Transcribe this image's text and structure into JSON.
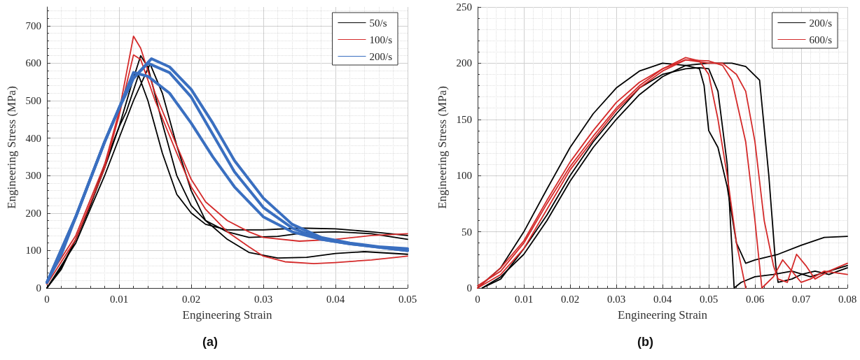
{
  "chart_data": [
    {
      "type": "line",
      "xlabel": "Engineering Strain",
      "ylabel": "Engineering Stress (MPa)",
      "annotations": [
        "(a)"
      ],
      "xlim": [
        0,
        0.05
      ],
      "ylim": [
        0,
        750
      ],
      "xticks": [
        0,
        0.01,
        0.02,
        0.03,
        0.04,
        0.05
      ],
      "yticks": [
        0,
        100,
        200,
        300,
        400,
        500,
        600,
        700
      ],
      "grid": true,
      "legend": "top right",
      "marker": "none",
      "line_style": "solid",
      "series": [
        {
          "name": "50/s",
          "color": "#000000",
          "x": [
            0,
            0.002,
            0.004,
            0.006,
            0.008,
            0.01,
            0.011,
            0.0127,
            0.014,
            0.016,
            0.018,
            0.02,
            0.022,
            0.025,
            0.03,
            0.035,
            0.04,
            0.045,
            0.05
          ],
          "values": [
            0,
            55,
            130,
            220,
            330,
            430,
            470,
            568,
            500,
            360,
            250,
            200,
            170,
            155,
            155,
            160,
            158,
            150,
            140
          ]
        },
        {
          "color": "#000000",
          "x": [
            0,
            0.002,
            0.004,
            0.006,
            0.008,
            0.01,
            0.012,
            0.013,
            0.014,
            0.016,
            0.018,
            0.02,
            0.022,
            0.025,
            0.028,
            0.032,
            0.036,
            0.04,
            0.045,
            0.05
          ],
          "values": [
            0,
            50,
            130,
            220,
            320,
            430,
            560,
            620,
            590,
            440,
            300,
            220,
            180,
            150,
            135,
            138,
            148,
            150,
            145,
            130
          ]
        },
        {
          "color": "#000000",
          "x": [
            0,
            0.004,
            0.008,
            0.012,
            0.0143,
            0.016,
            0.018,
            0.02,
            0.022,
            0.025,
            0.028,
            0.032,
            0.036,
            0.04,
            0.044,
            0.05
          ],
          "values": [
            0,
            120,
            300,
            500,
            598,
            520,
            380,
            260,
            180,
            130,
            95,
            80,
            82,
            92,
            97,
            90
          ]
        },
        {
          "name": "100/s",
          "color": "#d42a2a",
          "x": [
            0,
            0.004,
            0.008,
            0.01,
            0.012,
            0.013,
            0.015,
            0.018,
            0.02,
            0.022,
            0.025,
            0.028,
            0.03,
            0.035,
            0.04,
            0.045,
            0.05
          ],
          "values": [
            20,
            140,
            330,
            470,
            672,
            640,
            520,
            380,
            290,
            230,
            180,
            150,
            135,
            125,
            130,
            140,
            145
          ]
        },
        {
          "color": "#d42a2a",
          "x": [
            0,
            0.004,
            0.008,
            0.01,
            0.012,
            0.013,
            0.015,
            0.018,
            0.02,
            0.022,
            0.025,
            0.028,
            0.03,
            0.033,
            0.037,
            0.04,
            0.045,
            0.05
          ],
          "values": [
            10,
            130,
            320,
            460,
            622,
            610,
            500,
            360,
            270,
            210,
            150,
            110,
            85,
            70,
            65,
            68,
            75,
            85
          ]
        },
        {
          "name": "200/s",
          "color": "#3a6fc0",
          "x": [
            0,
            0.002,
            0.004,
            0.006,
            0.008,
            0.01,
            0.012,
            0.0145,
            0.017,
            0.02,
            0.023,
            0.026,
            0.03,
            0.034,
            0.038,
            0.042,
            0.046,
            0.05
          ],
          "values": [
            15,
            90,
            190,
            290,
            390,
            480,
            560,
            612,
            590,
            530,
            440,
            340,
            240,
            170,
            135,
            120,
            110,
            105
          ]
        },
        {
          "color": "#3a6fc0",
          "x": [
            0,
            0.004,
            0.008,
            0.01,
            0.012,
            0.014,
            0.017,
            0.02,
            0.023,
            0.026,
            0.03,
            0.034,
            0.038,
            0.042,
            0.05
          ],
          "values": [
            15,
            190,
            390,
            480,
            560,
            600,
            575,
            510,
            410,
            310,
            215,
            160,
            130,
            118,
            100
          ]
        },
        {
          "color": "#3a6fc0",
          "x": [
            0,
            0.004,
            0.008,
            0.01,
            0.012,
            0.014,
            0.017,
            0.02,
            0.023,
            0.026,
            0.03,
            0.034,
            0.038,
            0.042,
            0.05
          ],
          "values": [
            15,
            190,
            390,
            480,
            575,
            565,
            520,
            440,
            350,
            270,
            190,
            150,
            130,
            118,
            100
          ]
        }
      ]
    },
    {
      "type": "line",
      "xlabel": "Engineering Strain",
      "ylabel": "Engineering Stress (MPa)",
      "annotations": [
        "(b)"
      ],
      "xlim": [
        0,
        0.08
      ],
      "ylim": [
        0,
        250
      ],
      "xticks": [
        0,
        0.01,
        0.02,
        0.03,
        0.04,
        0.05,
        0.06,
        0.07,
        0.08
      ],
      "yticks": [
        0,
        50,
        100,
        150,
        200,
        250
      ],
      "grid": true,
      "legend": "top right",
      "marker": "none",
      "line_style": "solid",
      "series": [
        {
          "name": "200/s",
          "color": "#000000",
          "x": [
            0,
            0.005,
            0.01,
            0.015,
            0.02,
            0.025,
            0.03,
            0.035,
            0.04,
            0.045,
            0.048,
            0.049,
            0.05,
            0.052,
            0.054,
            0.056,
            0.058,
            0.06,
            0.065,
            0.07,
            0.075,
            0.08
          ],
          "values": [
            0,
            18,
            50,
            88,
            125,
            155,
            178,
            193,
            200,
            198,
            195,
            180,
            140,
            125,
            90,
            40,
            22,
            25,
            30,
            38,
            45,
            46
          ]
        },
        {
          "color": "#000000",
          "x": [
            0.001,
            0.005,
            0.01,
            0.015,
            0.02,
            0.025,
            0.03,
            0.035,
            0.04,
            0.045,
            0.048,
            0.05,
            0.052,
            0.054,
            0.0555,
            0.057,
            0.06,
            0.064,
            0.068,
            0.072,
            0.076,
            0.08
          ],
          "values": [
            0,
            8,
            35,
            65,
            100,
            130,
            155,
            178,
            190,
            195,
            196,
            195,
            175,
            110,
            0,
            5,
            10,
            12,
            15,
            10,
            15,
            20
          ]
        },
        {
          "color": "#000000",
          "x": [
            0.001,
            0.005,
            0.01,
            0.015,
            0.02,
            0.025,
            0.03,
            0.035,
            0.04,
            0.045,
            0.05,
            0.055,
            0.058,
            0.061,
            0.063,
            0.0645,
            0.065,
            0.068,
            0.07,
            0.073,
            0.076,
            0.08
          ],
          "values": [
            0,
            10,
            30,
            60,
            95,
            125,
            150,
            172,
            188,
            198,
            200,
            200,
            197,
            185,
            100,
            20,
            5,
            8,
            12,
            15,
            12,
            18
          ]
        },
        {
          "name": "600/s",
          "color": "#d42a2a",
          "x": [
            0,
            0.005,
            0.01,
            0.015,
            0.02,
            0.025,
            0.03,
            0.035,
            0.04,
            0.045,
            0.048,
            0.05,
            0.052,
            0.054,
            0.056,
            0.058
          ],
          "values": [
            0,
            18,
            42,
            78,
            112,
            140,
            165,
            183,
            195,
            205,
            202,
            190,
            150,
            100,
            40,
            0
          ]
        },
        {
          "color": "#d42a2a",
          "x": [
            0,
            0.005,
            0.01,
            0.015,
            0.02,
            0.025,
            0.03,
            0.035,
            0.04,
            0.045,
            0.05,
            0.053,
            0.055,
            0.058,
            0.06,
            0.0615,
            0.064,
            0.066,
            0.068,
            0.07,
            0.072,
            0.075,
            0.08
          ],
          "values": [
            2,
            15,
            40,
            75,
            108,
            135,
            160,
            180,
            195,
            203,
            202,
            198,
            185,
            130,
            60,
            0,
            10,
            25,
            15,
            5,
            8,
            15,
            12
          ]
        },
        {
          "color": "#d42a2a",
          "x": [
            0,
            0.005,
            0.01,
            0.015,
            0.02,
            0.025,
            0.03,
            0.035,
            0.04,
            0.045,
            0.05,
            0.053,
            0.056,
            0.058,
            0.06,
            0.062,
            0.064,
            0.065,
            0.067,
            0.069,
            0.071,
            0.073,
            0.076,
            0.08
          ],
          "values": [
            0,
            12,
            35,
            70,
            105,
            132,
            158,
            178,
            193,
            203,
            200,
            200,
            190,
            175,
            130,
            60,
            20,
            8,
            5,
            30,
            20,
            8,
            15,
            22
          ]
        }
      ]
    }
  ]
}
